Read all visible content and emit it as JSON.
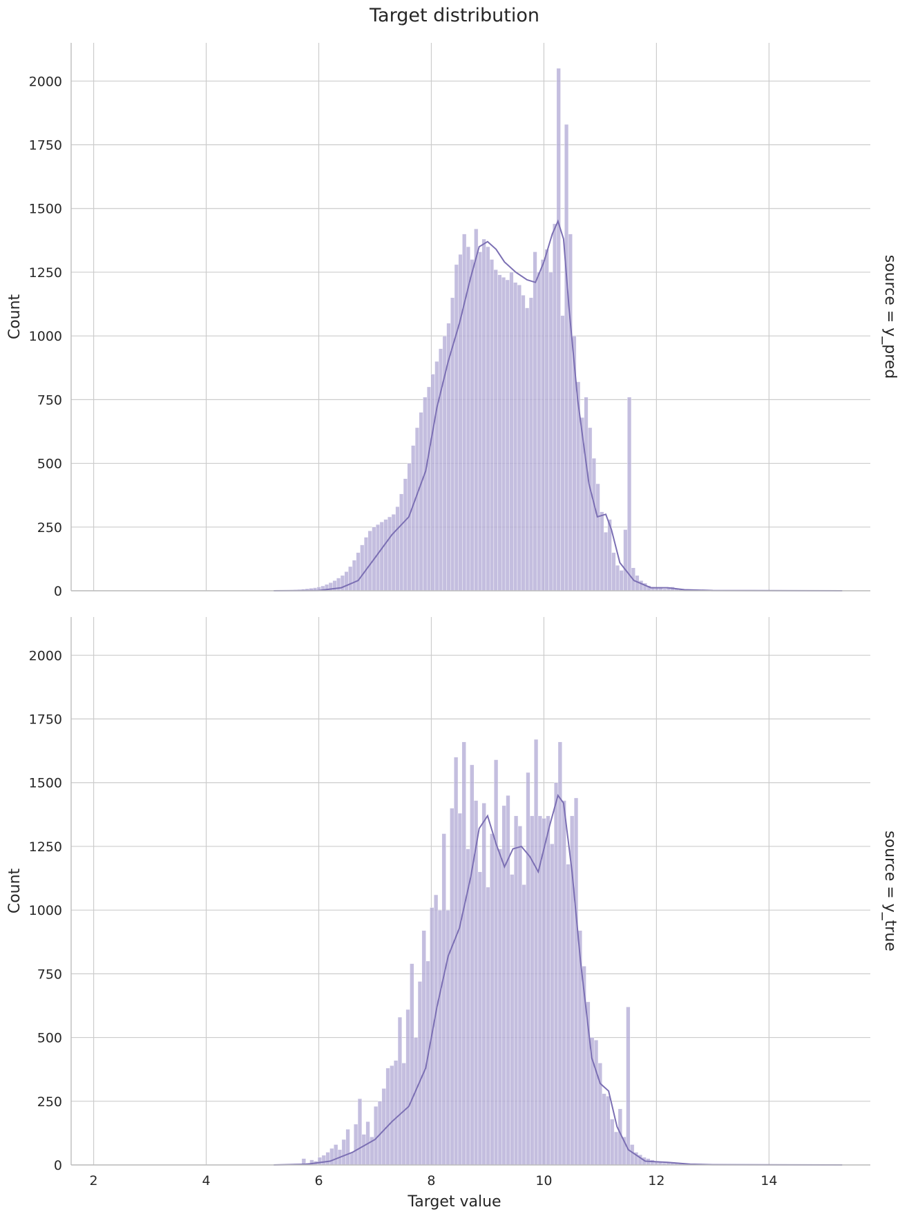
{
  "chart_data": {
    "type": "histogram",
    "title": "Target distribution",
    "xlabel": "Target value",
    "ylabel": "Count",
    "xlim": [
      1.6,
      15.8
    ],
    "ylim": [
      0,
      2150
    ],
    "x_ticks": [
      2,
      4,
      6,
      8,
      10,
      12,
      14
    ],
    "y_ticks": [
      0,
      250,
      500,
      750,
      1000,
      1250,
      1500,
      1750,
      2000
    ],
    "grid": true,
    "colors": {
      "bars": "#b4acd6",
      "kde": "#7b6fb3"
    },
    "bin_edges": [
      5.2,
      12.6
    ],
    "facets": [
      {
        "name": "y_pred",
        "row_label": "source = y_pred",
        "counts": [
          1,
          1,
          2,
          2,
          3,
          4,
          5,
          6,
          8,
          10,
          12,
          15,
          19,
          25,
          32,
          40,
          50,
          60,
          75,
          95,
          120,
          150,
          180,
          210,
          235,
          250,
          260,
          270,
          280,
          290,
          300,
          330,
          380,
          440,
          500,
          570,
          640,
          700,
          760,
          800,
          850,
          900,
          950,
          1000,
          1050,
          1150,
          1280,
          1320,
          1400,
          1350,
          1300,
          1420,
          1330,
          1380,
          1350,
          1300,
          1260,
          1240,
          1230,
          1220,
          1250,
          1210,
          1200,
          1160,
          1110,
          1150,
          1330,
          1250,
          1300,
          1340,
          1250,
          1440,
          2050,
          1080,
          1830,
          1400,
          1000,
          820,
          680,
          760,
          640,
          520,
          420,
          310,
          230,
          280,
          150,
          100,
          80,
          240,
          760,
          90,
          60,
          40,
          30,
          20,
          15,
          12,
          10,
          8,
          12,
          15,
          10,
          6,
          4,
          2
        ],
        "kde": [
          [
            5.2,
            0
          ],
          [
            6.0,
            1
          ],
          [
            6.4,
            12
          ],
          [
            6.7,
            40
          ],
          [
            7.0,
            130
          ],
          [
            7.3,
            220
          ],
          [
            7.6,
            290
          ],
          [
            7.9,
            470
          ],
          [
            8.1,
            720
          ],
          [
            8.3,
            900
          ],
          [
            8.5,
            1050
          ],
          [
            8.7,
            1230
          ],
          [
            8.85,
            1350
          ],
          [
            9.0,
            1370
          ],
          [
            9.15,
            1340
          ],
          [
            9.3,
            1290
          ],
          [
            9.5,
            1250
          ],
          [
            9.7,
            1220
          ],
          [
            9.85,
            1210
          ],
          [
            10.0,
            1290
          ],
          [
            10.15,
            1400
          ],
          [
            10.25,
            1450
          ],
          [
            10.35,
            1380
          ],
          [
            10.45,
            1100
          ],
          [
            10.6,
            750
          ],
          [
            10.8,
            420
          ],
          [
            10.95,
            290
          ],
          [
            11.1,
            300
          ],
          [
            11.2,
            240
          ],
          [
            11.35,
            110
          ],
          [
            11.6,
            40
          ],
          [
            11.9,
            12
          ],
          [
            12.2,
            12
          ],
          [
            12.5,
            4
          ],
          [
            13.0,
            1
          ],
          [
            15.3,
            0
          ]
        ]
      },
      {
        "name": "y_true",
        "row_label": "source = y_true",
        "counts": [
          1,
          2,
          1,
          3,
          2,
          5,
          4,
          25,
          8,
          20,
          15,
          30,
          38,
          50,
          65,
          80,
          60,
          100,
          140,
          50,
          160,
          260,
          120,
          170,
          110,
          230,
          250,
          300,
          380,
          390,
          410,
          580,
          400,
          610,
          790,
          500,
          720,
          920,
          800,
          1010,
          1060,
          1000,
          1300,
          1000,
          1400,
          1600,
          1380,
          1660,
          1240,
          1570,
          1430,
          1150,
          1420,
          1090,
          1300,
          1590,
          1240,
          1410,
          1450,
          1140,
          1370,
          1330,
          1100,
          1540,
          1370,
          1670,
          1370,
          1360,
          1370,
          1260,
          1500,
          1660,
          1430,
          1180,
          1370,
          1440,
          920,
          780,
          640,
          500,
          490,
          400,
          280,
          270,
          180,
          130,
          220,
          110,
          620,
          80,
          50,
          40,
          30,
          25,
          20,
          15,
          10,
          8,
          12,
          10,
          8,
          6,
          4,
          2
        ],
        "kde": [
          [
            5.2,
            0
          ],
          [
            5.8,
            3
          ],
          [
            6.2,
            15
          ],
          [
            6.6,
            50
          ],
          [
            7.0,
            100
          ],
          [
            7.3,
            170
          ],
          [
            7.6,
            230
          ],
          [
            7.9,
            380
          ],
          [
            8.1,
            620
          ],
          [
            8.3,
            820
          ],
          [
            8.5,
            930
          ],
          [
            8.7,
            1130
          ],
          [
            8.85,
            1320
          ],
          [
            9.0,
            1370
          ],
          [
            9.15,
            1260
          ],
          [
            9.3,
            1170
          ],
          [
            9.45,
            1240
          ],
          [
            9.6,
            1250
          ],
          [
            9.75,
            1210
          ],
          [
            9.9,
            1150
          ],
          [
            10.1,
            1330
          ],
          [
            10.25,
            1450
          ],
          [
            10.35,
            1420
          ],
          [
            10.5,
            1150
          ],
          [
            10.65,
            800
          ],
          [
            10.85,
            420
          ],
          [
            11.0,
            320
          ],
          [
            11.15,
            290
          ],
          [
            11.3,
            150
          ],
          [
            11.5,
            60
          ],
          [
            11.8,
            15
          ],
          [
            12.2,
            10
          ],
          [
            12.6,
            3
          ],
          [
            13.0,
            1
          ],
          [
            15.3,
            0
          ]
        ]
      }
    ]
  }
}
